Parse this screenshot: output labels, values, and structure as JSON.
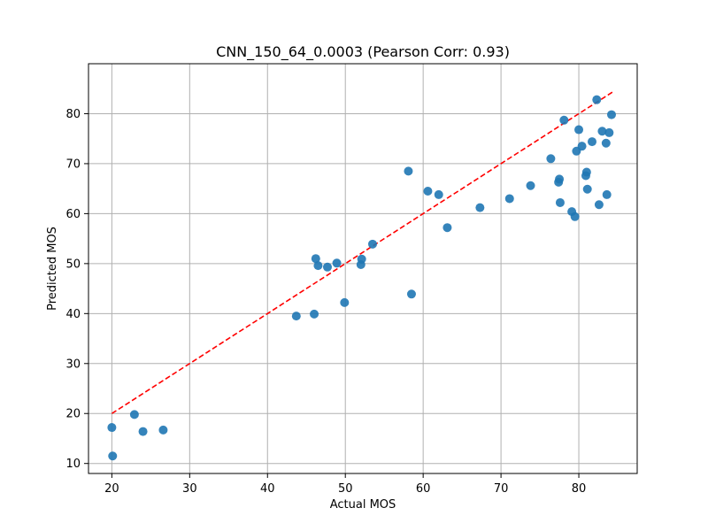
{
  "chart_data": {
    "type": "scatter",
    "title": "CNN_150_64_0.0003 (Pearson Corr: 0.93)",
    "xlabel": "Actual MOS",
    "ylabel": "Predicted MOS",
    "xlim": [
      17,
      87.5
    ],
    "ylim": [
      8,
      90
    ],
    "xticks": [
      20,
      30,
      40,
      50,
      60,
      70,
      80
    ],
    "yticks": [
      10,
      20,
      30,
      40,
      50,
      60,
      70,
      80
    ],
    "grid": true,
    "point_color": "#1f77b4",
    "reference_line": {
      "style": "dashed",
      "color": "#ff0000",
      "from": [
        20,
        20
      ],
      "to": [
        84.3,
        84.3
      ]
    },
    "points": [
      {
        "x": 20.0,
        "y": 17.2
      },
      {
        "x": 20.1,
        "y": 11.5
      },
      {
        "x": 22.9,
        "y": 19.8
      },
      {
        "x": 24.0,
        "y": 16.4
      },
      {
        "x": 26.6,
        "y": 16.7
      },
      {
        "x": 43.7,
        "y": 39.5
      },
      {
        "x": 46.0,
        "y": 39.9
      },
      {
        "x": 46.2,
        "y": 51.0
      },
      {
        "x": 46.5,
        "y": 49.6
      },
      {
        "x": 47.7,
        "y": 49.3
      },
      {
        "x": 48.9,
        "y": 50.1
      },
      {
        "x": 49.9,
        "y": 42.2
      },
      {
        "x": 52.0,
        "y": 49.8
      },
      {
        "x": 52.1,
        "y": 50.9
      },
      {
        "x": 53.5,
        "y": 53.9
      },
      {
        "x": 58.1,
        "y": 68.5
      },
      {
        "x": 58.5,
        "y": 43.9
      },
      {
        "x": 60.6,
        "y": 64.5
      },
      {
        "x": 62.0,
        "y": 63.8
      },
      {
        "x": 63.1,
        "y": 57.2
      },
      {
        "x": 67.3,
        "y": 61.2
      },
      {
        "x": 71.1,
        "y": 63.0
      },
      {
        "x": 73.8,
        "y": 65.6
      },
      {
        "x": 76.4,
        "y": 71.0
      },
      {
        "x": 77.4,
        "y": 66.3
      },
      {
        "x": 77.5,
        "y": 66.9
      },
      {
        "x": 77.6,
        "y": 62.2
      },
      {
        "x": 78.1,
        "y": 78.7
      },
      {
        "x": 79.1,
        "y": 60.4
      },
      {
        "x": 79.5,
        "y": 59.4
      },
      {
        "x": 79.7,
        "y": 72.5
      },
      {
        "x": 80.0,
        "y": 76.8
      },
      {
        "x": 80.4,
        "y": 73.5
      },
      {
        "x": 80.9,
        "y": 67.6
      },
      {
        "x": 81.0,
        "y": 68.3
      },
      {
        "x": 81.1,
        "y": 64.9
      },
      {
        "x": 81.7,
        "y": 74.4
      },
      {
        "x": 82.3,
        "y": 82.8
      },
      {
        "x": 82.6,
        "y": 61.8
      },
      {
        "x": 83.0,
        "y": 76.5
      },
      {
        "x": 83.5,
        "y": 74.1
      },
      {
        "x": 83.6,
        "y": 63.8
      },
      {
        "x": 83.9,
        "y": 76.2
      },
      {
        "x": 84.2,
        "y": 79.8
      }
    ]
  }
}
